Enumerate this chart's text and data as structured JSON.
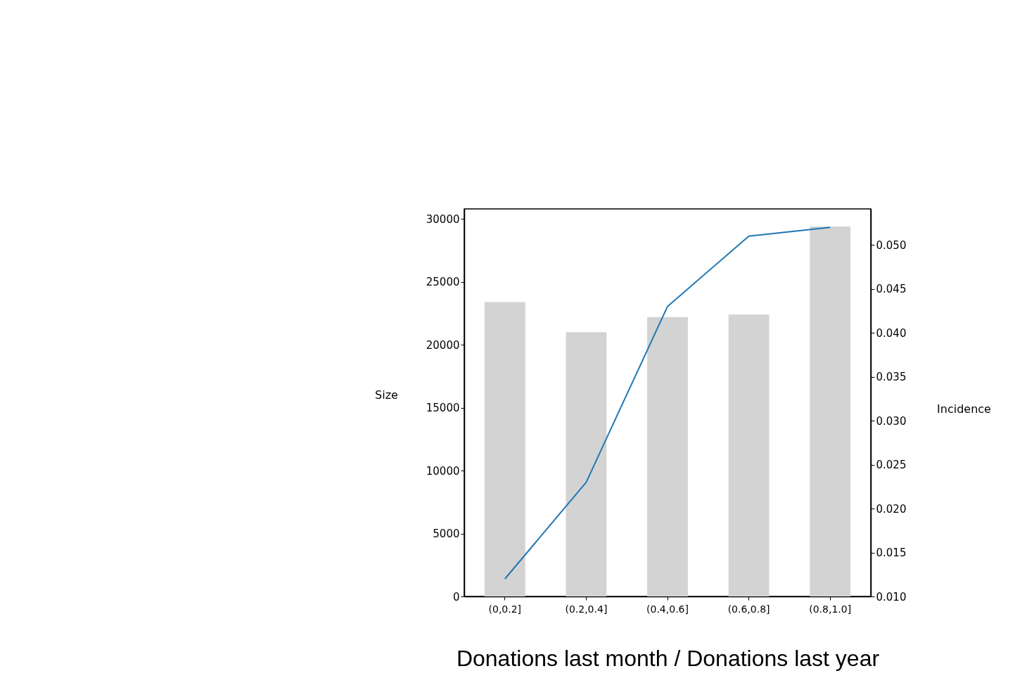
{
  "chart_data": {
    "type": "bar",
    "xlabel": "Donations last month / Donations last year",
    "ylabel": "Size",
    "y2label": "Incidence",
    "categories": [
      "(0,0.2]",
      "(0.2,0.4]",
      "(0.4,0.6]",
      "(0.6,0.8]",
      "(0.8,1.0]"
    ],
    "series": [
      {
        "color": "#d3d3d3",
        "values": [
          23400,
          21000,
          22200,
          22400,
          29400
        ]
      },
      {
        "type": "line",
        "axis": "y2",
        "color": "#1f77b4",
        "values": [
          0.012,
          0.023,
          0.043,
          0.051,
          0.052
        ]
      }
    ],
    "ylim": [
      0,
      30800
    ],
    "yticks": [
      0,
      5000,
      10000,
      15000,
      20000,
      25000,
      30000
    ],
    "y2lim": [
      0.01,
      0.0541
    ],
    "y2ticks": [
      {
        "value": 0.01,
        "label": "0.010"
      },
      {
        "value": 0.015,
        "label": "0.015"
      },
      {
        "value": 0.02,
        "label": "0.020"
      },
      {
        "value": 0.025,
        "label": "0.025"
      },
      {
        "value": 0.03,
        "label": "0.030"
      },
      {
        "value": 0.035,
        "label": "0.035"
      },
      {
        "value": 0.04,
        "label": "0.040"
      },
      {
        "value": 0.045,
        "label": "0.045"
      },
      {
        "value": 0.05,
        "label": "0.050"
      }
    ],
    "grid": false
  }
}
